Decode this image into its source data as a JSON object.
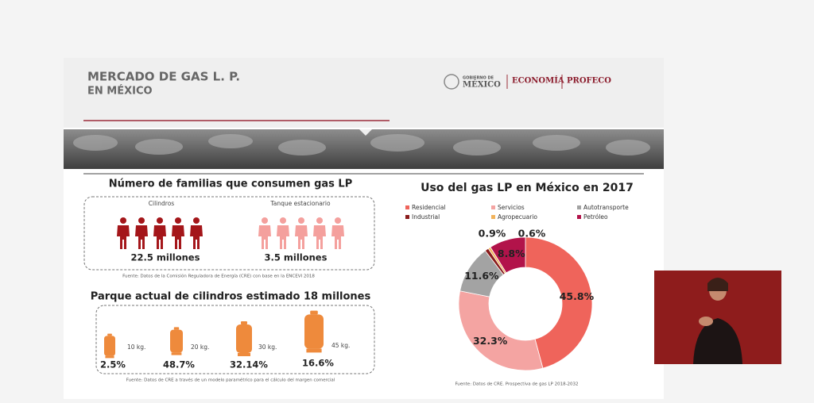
{
  "header": {
    "title_line1": "MERCADO DE GAS L. P.",
    "title_line2": "EN MÉXICO",
    "logo_gob_line1": "GOBIERNO DE",
    "logo_gob_line2": "MÉXICO",
    "logo_economia": "ECONOMÍA",
    "logo_profeco": "PROFECO"
  },
  "families": {
    "title": "Número de familias que consumen gas LP",
    "groups": [
      {
        "label": "Cilindros",
        "value": "22.5 millones"
      },
      {
        "label": "Tanque estacionario",
        "value": "3.5 millones"
      }
    ],
    "source": "Fuente: Datos de la Comisión Reguladora de Energía (CRE) con base en la ENCEVI 2018"
  },
  "cylinders": {
    "title": "Parque actual de cilindros estimado 18 millones",
    "items": [
      {
        "size": "10 kg.",
        "share": "2.5%"
      },
      {
        "size": "20 kg.",
        "share": "48.7%"
      },
      {
        "size": "30 kg.",
        "share": "32.14%"
      },
      {
        "size": "45 kg.",
        "share": "16.6%"
      }
    ],
    "source": "Fuente: Datos de CRE a través de un modelo paramétrico para el cálculo del margen comercial"
  },
  "chart_data": {
    "type": "pie",
    "donut": true,
    "title": "Uso del gas LP en México en 2017",
    "categories": [
      "Residencial",
      "Servicios",
      "Autotransporte",
      "Industrial",
      "Agropecuario",
      "Petróleo"
    ],
    "values": [
      45.8,
      32.3,
      11.6,
      0.9,
      0.6,
      8.8
    ],
    "value_labels": [
      "45.8%",
      "32.3%",
      "11.6%",
      "0.9%",
      "0.6%",
      "8.8%"
    ],
    "colors": [
      "#ef645b",
      "#f4a4a2",
      "#a3a3a3",
      "#8a1c1c",
      "#f2b35b",
      "#b2134a"
    ],
    "source": "Fuente: Datos de CRE. Prospectiva de gas LP 2018-2032"
  }
}
